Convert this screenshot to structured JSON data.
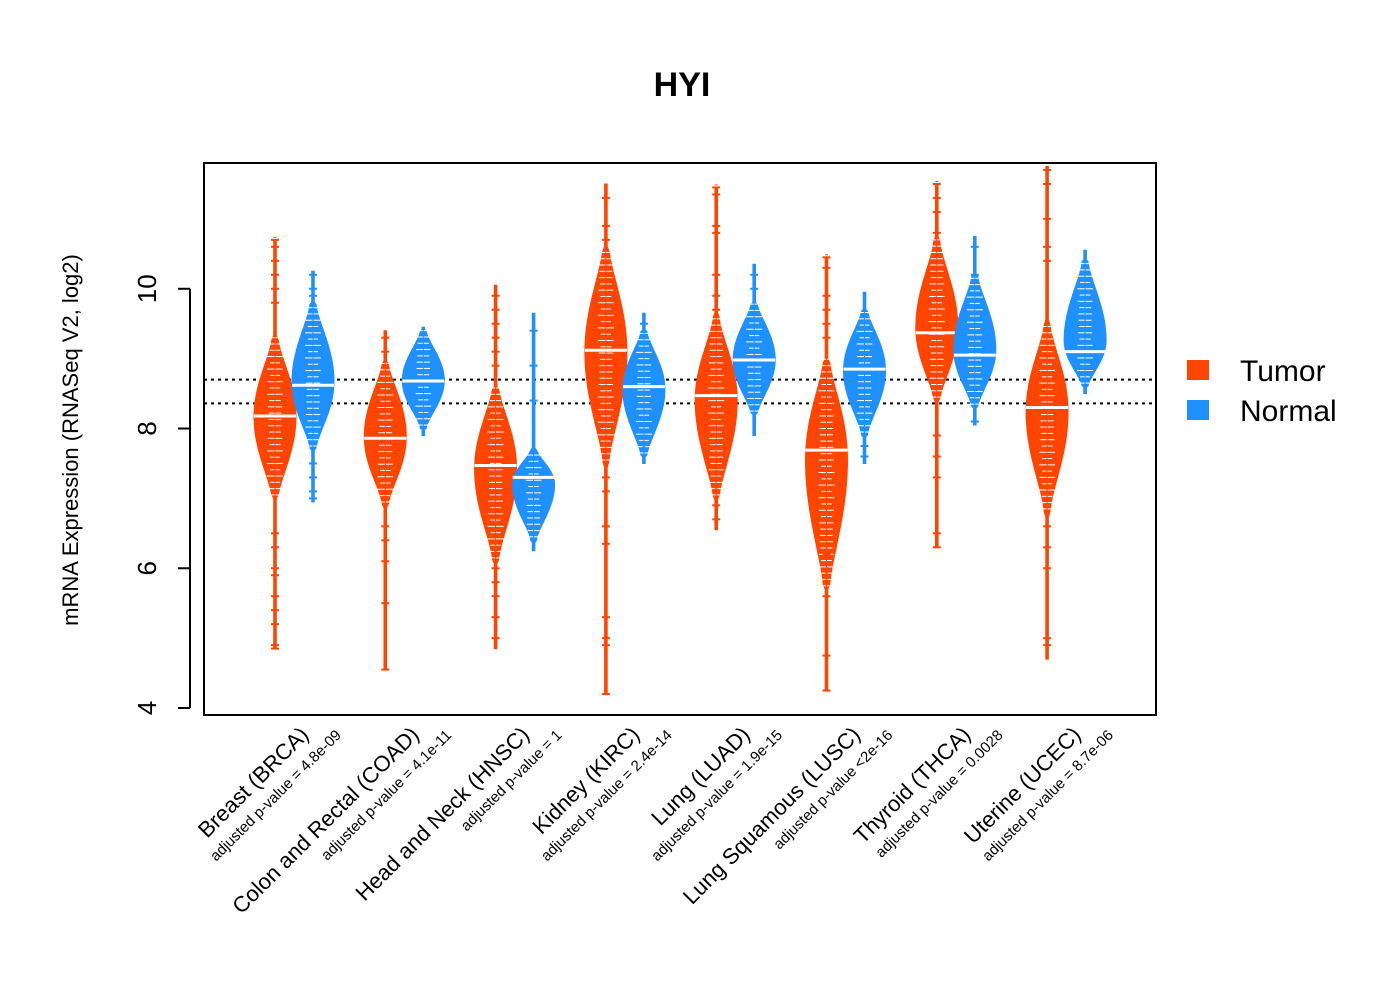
{
  "chart_data": {
    "type": "beanplot",
    "title": "HYI",
    "xlabel": "",
    "ylabel": "mRNA Expression (RNASeq V2, log2)",
    "ylim": [
      3.9,
      11.8
    ],
    "yticks": [
      4,
      6,
      8,
      10
    ],
    "reference_lines": [
      8.36,
      8.7
    ],
    "legend": {
      "position": "right",
      "entries": [
        {
          "label": "Tumor",
          "color": "#FF4500"
        },
        {
          "label": "Normal",
          "color": "#1E90FF"
        }
      ]
    },
    "colors": {
      "tumor": "#FF4500",
      "normal": "#1E90FF"
    },
    "categories": [
      "Breast (BRCA)",
      "Colon and Rectal (COAD)",
      "Head and Neck (HNSC)",
      "Kidney (KIRC)",
      "Lung (LUAD)",
      "Lung Squamous (LUSC)",
      "Thyroid (THCA)",
      "Uterine (UCEC)"
    ],
    "pvalues": [
      "adjusted p-value = 4.8e-09",
      "adjusted p-value = 4.1e-11",
      "adjusted p-value = 1",
      "adjusted p-value = 2.4e-14",
      "adjusted p-value = 1.9e-15",
      "adjusted p-value <2e-16",
      "adjusted p-value = 0.0028",
      "adjusted p-value = 8.7e-06"
    ],
    "series": [
      {
        "name": "Tumor",
        "medians": [
          8.18,
          7.86,
          7.47,
          9.12,
          8.47,
          7.69,
          9.37,
          8.3
        ],
        "ranges": [
          [
            4.85,
            10.7
          ],
          [
            4.55,
            9.4
          ],
          [
            4.85,
            10.05
          ],
          [
            4.2,
            11.5
          ],
          [
            6.55,
            11.45
          ],
          [
            4.25,
            10.45
          ],
          [
            6.3,
            11.5
          ],
          [
            4.7,
            11.75
          ]
        ],
        "cores": [
          [
            7.0,
            9.3
          ],
          [
            6.9,
            8.95
          ],
          [
            6.1,
            8.6
          ],
          [
            7.5,
            10.6
          ],
          [
            7.0,
            9.6
          ],
          [
            5.7,
            9.0
          ],
          [
            8.4,
            10.7
          ],
          [
            6.8,
            9.5
          ]
        ],
        "outliers": [
          [
            4.85,
            4.9,
            5.2,
            5.4,
            5.6,
            5.9,
            6.0,
            6.3,
            6.5,
            9.8,
            10.0,
            10.2,
            10.4,
            10.6,
            10.7
          ],
          [
            4.55,
            5.5,
            6.1,
            6.4,
            6.6,
            9.1,
            9.3
          ],
          [
            5.0,
            5.3,
            5.6,
            5.8,
            6.0,
            6.2,
            8.9,
            9.1,
            9.3,
            9.5,
            9.7,
            9.9
          ],
          [
            4.2,
            4.9,
            5.0,
            5.3,
            6.35,
            6.6,
            7.1,
            7.3,
            10.7,
            10.9,
            11.3
          ],
          [
            6.7,
            6.9,
            7.1,
            9.7,
            9.9,
            10.2,
            10.8,
            10.9,
            11.35,
            11.45
          ],
          [
            4.25,
            4.75,
            5.6,
            5.9,
            6.2,
            6.5,
            9.3,
            9.5,
            9.7,
            9.9,
            10.3,
            10.45
          ],
          [
            6.3,
            6.5,
            7.3,
            7.6,
            7.9,
            10.8,
            11.1,
            11.3,
            11.5
          ],
          [
            4.9,
            5.0,
            6.0,
            6.3,
            6.6,
            10.4,
            10.6,
            11.0,
            11.5,
            11.7
          ]
        ]
      },
      {
        "name": "Normal",
        "medians": [
          8.62,
          8.68,
          7.3,
          8.6,
          8.98,
          8.85,
          9.05,
          9.1
        ],
        "ranges": [
          [
            6.95,
            10.25
          ],
          [
            7.9,
            9.45
          ],
          [
            6.25,
            9.65
          ],
          [
            7.5,
            9.65
          ],
          [
            7.9,
            10.35
          ],
          [
            7.5,
            9.95
          ],
          [
            8.05,
            10.75
          ],
          [
            8.5,
            10.55
          ]
        ],
        "cores": [
          [
            7.7,
            9.8
          ],
          [
            8.0,
            9.4
          ],
          [
            6.4,
            7.7
          ],
          [
            7.6,
            9.4
          ],
          [
            8.2,
            9.8
          ],
          [
            7.9,
            9.7
          ],
          [
            8.3,
            10.2
          ],
          [
            8.6,
            10.4
          ]
        ],
        "outliers": [
          [
            7.0,
            7.1,
            7.3,
            7.5,
            9.9,
            10.0,
            10.2
          ],
          [],
          [
            8.4,
            8.9,
            9.4
          ],
          [
            7.7,
            7.9,
            9.5
          ],
          [
            10.0,
            10.2
          ],
          [
            7.6,
            7.75,
            9.6
          ],
          [
            8.1,
            10.2,
            10.6
          ],
          []
        ]
      }
    ]
  }
}
